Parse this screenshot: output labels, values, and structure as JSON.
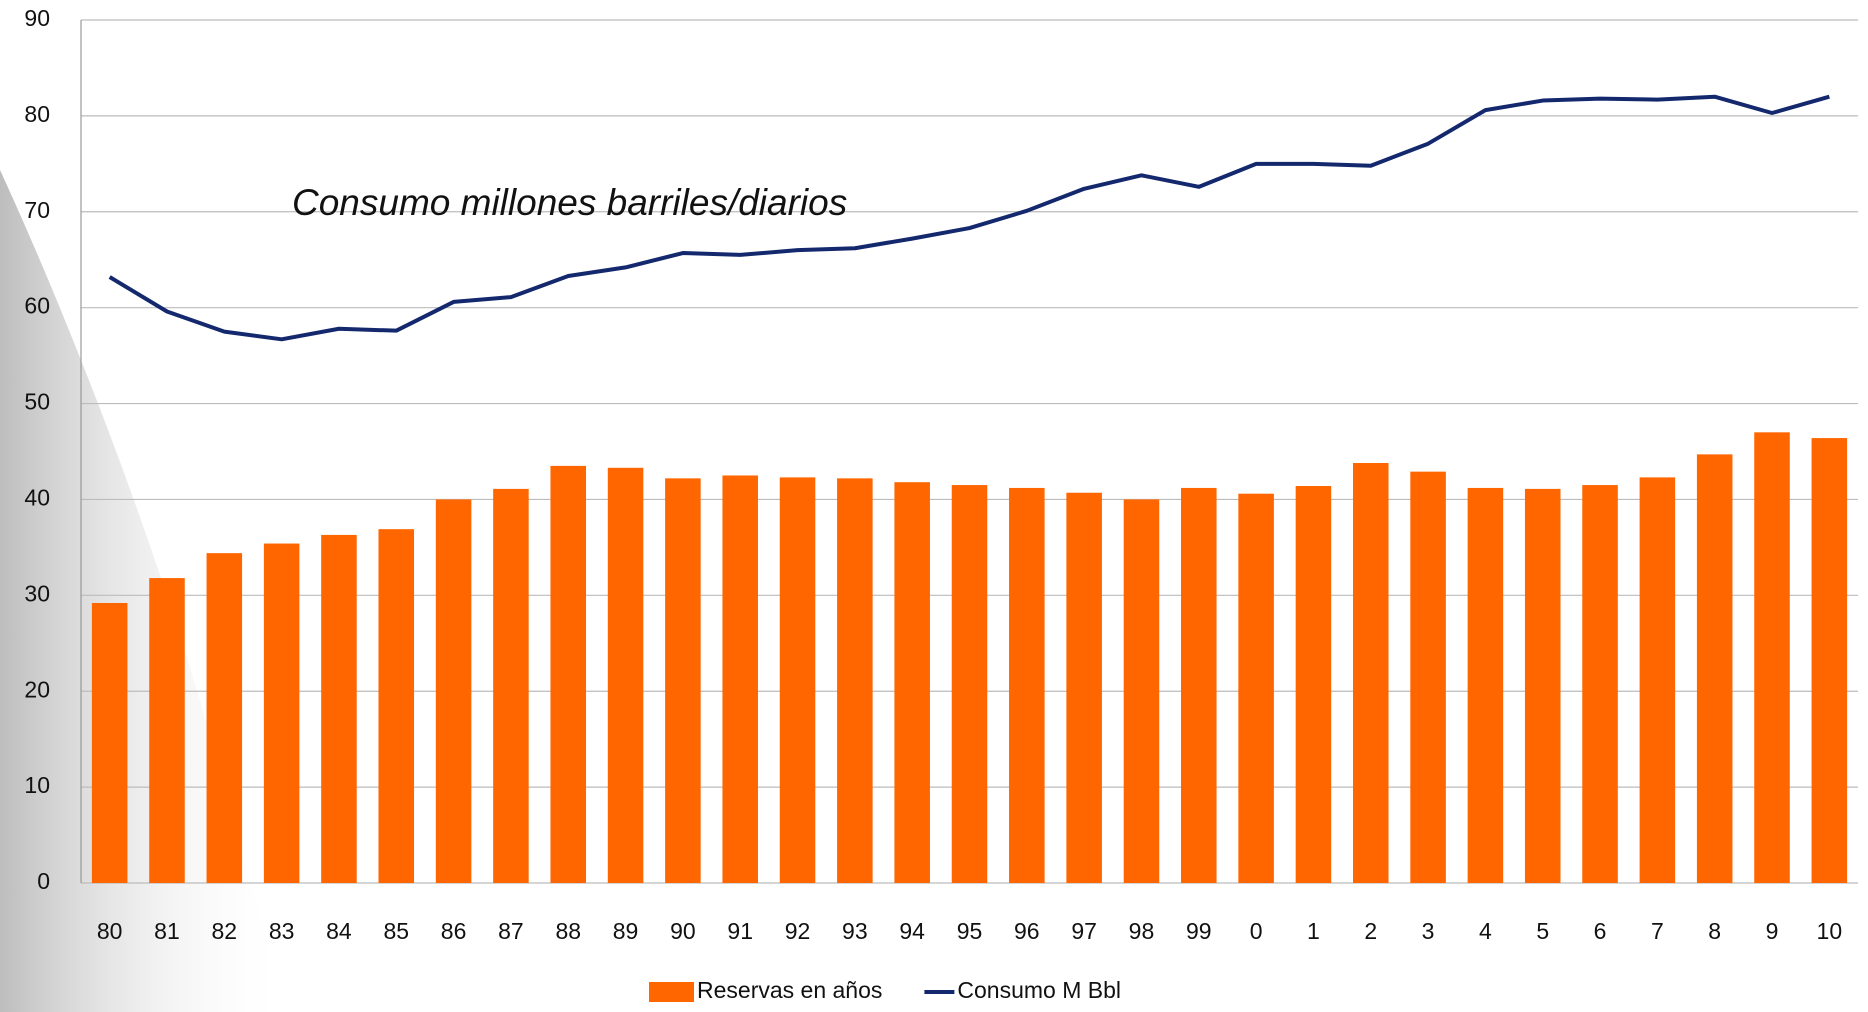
{
  "chart_data": {
    "type": "bar_line",
    "annotation": "Consumo millones barriles/diarios",
    "categories": [
      "80",
      "81",
      "82",
      "83",
      "84",
      "85",
      "86",
      "87",
      "88",
      "89",
      "90",
      "91",
      "92",
      "93",
      "94",
      "95",
      "96",
      "97",
      "98",
      "99",
      "0",
      "1",
      "2",
      "3",
      "4",
      "5",
      "6",
      "7",
      "8",
      "9",
      "10"
    ],
    "series": [
      {
        "name": "Reservas en años",
        "type": "bar",
        "color": "#ff6600",
        "values": [
          29.2,
          31.8,
          34.4,
          35.4,
          36.3,
          36.9,
          40.0,
          41.1,
          43.5,
          43.3,
          42.2,
          42.5,
          42.3,
          42.2,
          41.8,
          41.5,
          41.2,
          40.7,
          40.0,
          41.2,
          40.6,
          41.4,
          43.8,
          42.9,
          41.2,
          41.1,
          41.5,
          42.3,
          44.7,
          47.0,
          46.4
        ]
      },
      {
        "name": "Consumo M Bbl",
        "type": "line",
        "color": "#14286e",
        "values": [
          63.2,
          59.6,
          57.5,
          56.7,
          57.8,
          57.6,
          60.6,
          61.1,
          63.3,
          64.2,
          65.7,
          65.5,
          66.0,
          66.2,
          67.2,
          68.3,
          70.1,
          72.4,
          73.8,
          72.6,
          75.0,
          75.0,
          74.8,
          77.1,
          80.6,
          81.6,
          81.8,
          81.7,
          82.0,
          80.3,
          82.0
        ]
      }
    ],
    "ylim": [
      0,
      90
    ],
    "yticks": [
      0,
      10,
      20,
      30,
      40,
      50,
      60,
      70,
      80,
      90
    ],
    "grid": true,
    "legend": "bottom"
  }
}
